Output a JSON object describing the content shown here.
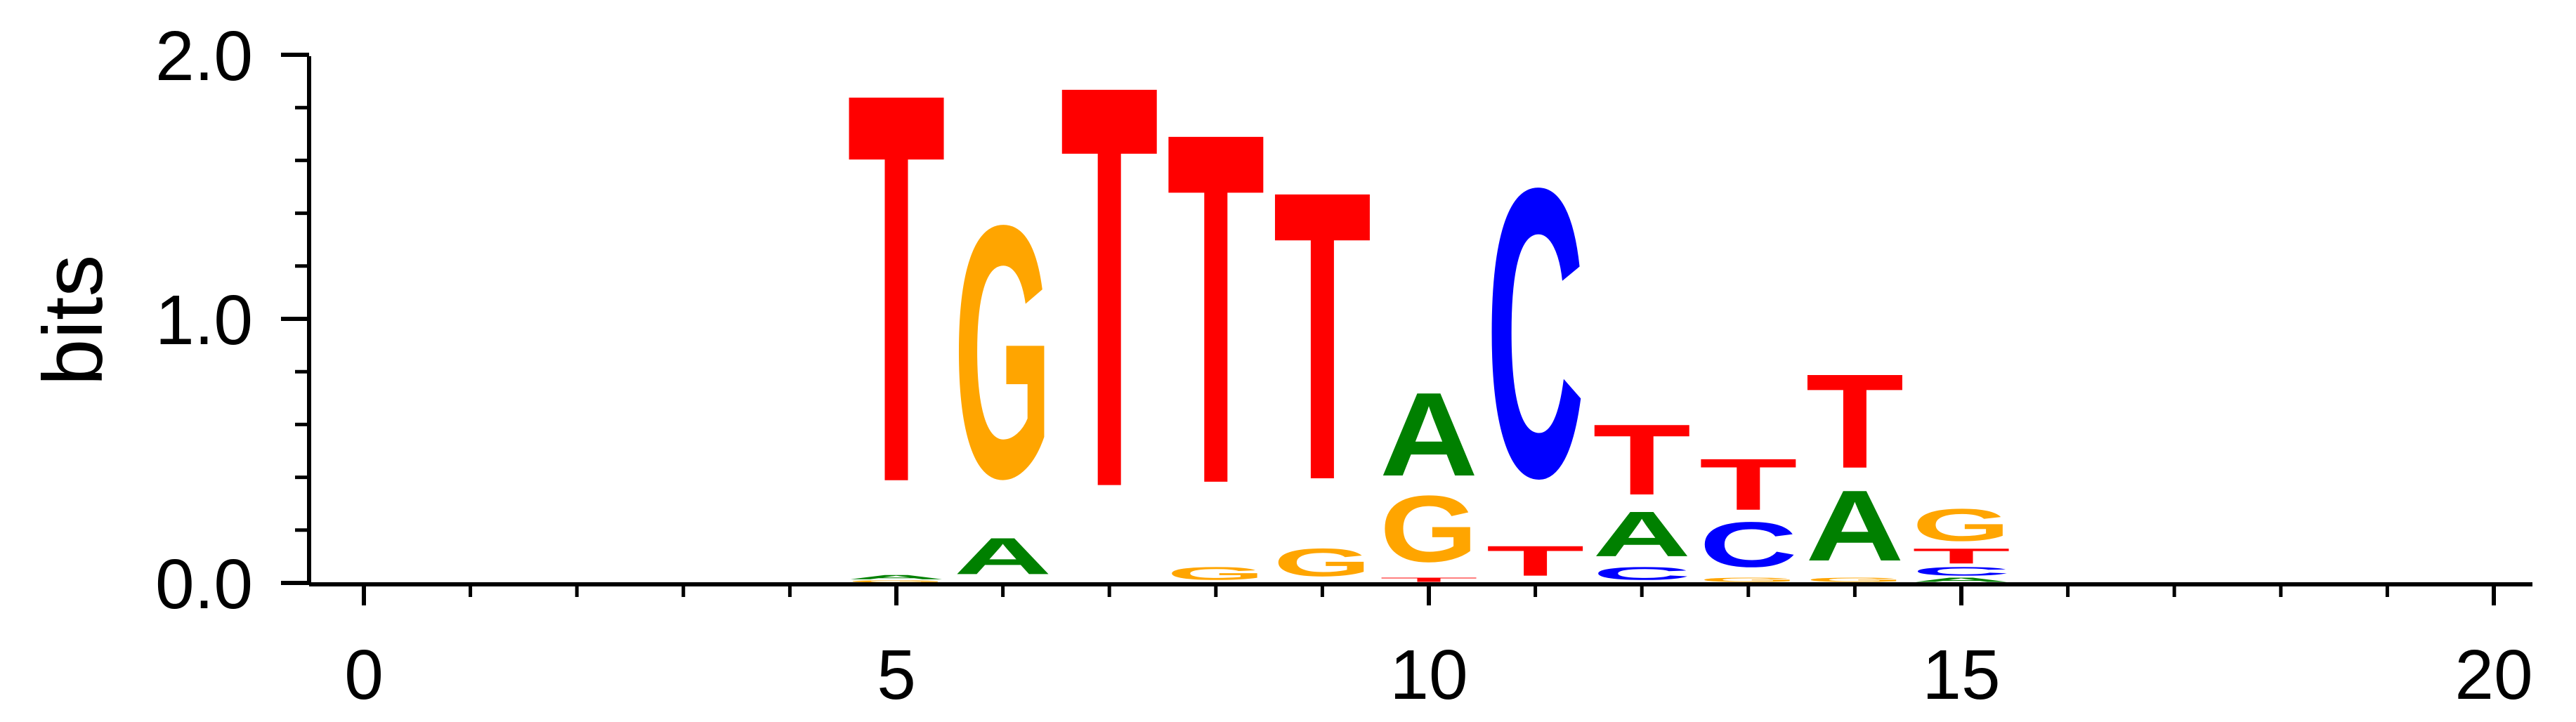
{
  "chart_data": {
    "type": "sequence_logo",
    "ylabel": "bits",
    "xlabel": "",
    "ylim": [
      0,
      2.0
    ],
    "xlim": [
      0,
      20
    ],
    "x_major_ticks": [
      0,
      5,
      10,
      15,
      20
    ],
    "x_tick_labels": [
      "0",
      "5",
      "10",
      "15",
      "20"
    ],
    "x_minor_ticks": [
      1,
      2,
      3,
      4,
      6,
      7,
      8,
      9,
      11,
      12,
      13,
      14,
      16,
      17,
      18,
      19
    ],
    "y_major_ticks": [
      0.0,
      1.0,
      2.0
    ],
    "y_tick_labels": [
      "0.0",
      "1.0",
      "2.0"
    ],
    "y_minor_ticks": [
      0.2,
      0.4,
      0.6,
      0.8,
      1.2,
      1.4,
      1.6,
      1.8
    ],
    "grid": false,
    "letter_colors": {
      "A": "#008000",
      "C": "#0000ff",
      "G": "#ffa500",
      "T": "#ff0000"
    },
    "positions": [
      {
        "x": 5,
        "stack": [
          {
            "letter": "G",
            "bits": 0.01
          },
          {
            "letter": "A",
            "bits": 0.02
          },
          {
            "letter": "T",
            "bits": 1.82
          }
        ]
      },
      {
        "x": 6,
        "stack": [
          {
            "letter": "A",
            "bits": 0.17
          },
          {
            "letter": "G",
            "bits": 1.18
          }
        ]
      },
      {
        "x": 7,
        "stack": [
          {
            "letter": "T",
            "bits": 1.88
          }
        ]
      },
      {
        "x": 8,
        "stack": [
          {
            "letter": "G",
            "bits": 0.06
          },
          {
            "letter": "T",
            "bits": 1.64
          }
        ]
      },
      {
        "x": 9,
        "stack": [
          {
            "letter": "G",
            "bits": 0.13
          },
          {
            "letter": "T",
            "bits": 1.35
          }
        ]
      },
      {
        "x": 10,
        "stack": [
          {
            "letter": "T",
            "bits": 0.02
          },
          {
            "letter": "G",
            "bits": 0.31
          },
          {
            "letter": "A",
            "bits": 0.39
          }
        ]
      },
      {
        "x": 11,
        "stack": [
          {
            "letter": "T",
            "bits": 0.14
          },
          {
            "letter": "C",
            "bits": 1.35
          }
        ]
      },
      {
        "x": 12,
        "stack": [
          {
            "letter": "C",
            "bits": 0.06
          },
          {
            "letter": "A",
            "bits": 0.21
          },
          {
            "letter": "T",
            "bits": 0.33
          }
        ]
      },
      {
        "x": 13,
        "stack": [
          {
            "letter": "G",
            "bits": 0.02
          },
          {
            "letter": "C",
            "bits": 0.21
          },
          {
            "letter": "T",
            "bits": 0.24
          }
        ]
      },
      {
        "x": 14,
        "stack": [
          {
            "letter": "G",
            "bits": 0.02
          },
          {
            "letter": "A",
            "bits": 0.33
          },
          {
            "letter": "T",
            "bits": 0.44
          }
        ]
      },
      {
        "x": 15,
        "stack": [
          {
            "letter": "A",
            "bits": 0.02
          },
          {
            "letter": "C",
            "bits": 0.04
          },
          {
            "letter": "T",
            "bits": 0.07
          },
          {
            "letter": "G",
            "bits": 0.15
          }
        ]
      }
    ]
  }
}
